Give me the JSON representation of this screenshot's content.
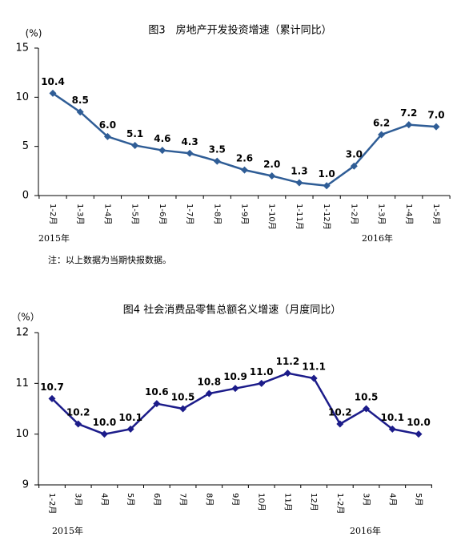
{
  "chart_data": [
    {
      "type": "line",
      "title": "图3　房地产开发投资增速（累计同比）",
      "unit_label": "(%)",
      "categories": [
        "1-2月",
        "1-3月",
        "1-4月",
        "1-5月",
        "1-6月",
        "1-7月",
        "1-8月",
        "1-9月",
        "1-10月",
        "1-11月",
        "1-12月",
        "1-2月",
        "1-3月",
        "1-4月",
        "1-5月"
      ],
      "year_labels": [
        "2015年",
        "2016年"
      ],
      "series": [
        {
          "name": "房地产开发投资增速",
          "color": "#2f5d96",
          "values": [
            10.4,
            8.5,
            6.0,
            5.1,
            4.6,
            4.3,
            3.5,
            2.6,
            2.0,
            1.3,
            1.0,
            3.0,
            6.2,
            7.2,
            7.0
          ],
          "value_labels": [
            "10.4",
            "8.5",
            "6.0",
            "5.1",
            "4.6",
            "4.3",
            "3.5",
            "2.6",
            "2.0",
            "1.3",
            "1.0",
            "3.0",
            "6.2",
            "7.2",
            "7.0"
          ]
        }
      ],
      "ylim": [
        0,
        15
      ],
      "yticks": [
        0,
        5,
        10,
        15
      ],
      "note": "注：以上数据为当期快报数据。"
    },
    {
      "type": "line",
      "title": "图4 社会消费品零售总额名义增速（月度同比）",
      "unit_label": "（%）",
      "categories": [
        "1-2月",
        "3月",
        "4月",
        "5月",
        "6月",
        "7月",
        "8月",
        "9月",
        "10月",
        "11月",
        "12月",
        "1-2月",
        "3月",
        "4月",
        "5月"
      ],
      "year_labels": [
        "2015年",
        "2016年"
      ],
      "series": [
        {
          "name": "社会消费品零售总额名义增速",
          "color": "#1c1c8a",
          "values": [
            10.7,
            10.2,
            10.0,
            10.1,
            10.6,
            10.5,
            10.8,
            10.9,
            11.0,
            11.2,
            11.1,
            10.2,
            10.5,
            10.1,
            10.0
          ],
          "value_labels": [
            "10.7",
            "10.2",
            "10.0",
            "10.1",
            "10.6",
            "10.5",
            "10.8",
            "10.9",
            "11.0",
            "11.2",
            "11.1",
            "10.2",
            "10.5",
            "10.1",
            "10.0"
          ]
        }
      ],
      "ylim": [
        9,
        12
      ],
      "yticks": [
        9,
        10,
        11,
        12
      ]
    }
  ]
}
